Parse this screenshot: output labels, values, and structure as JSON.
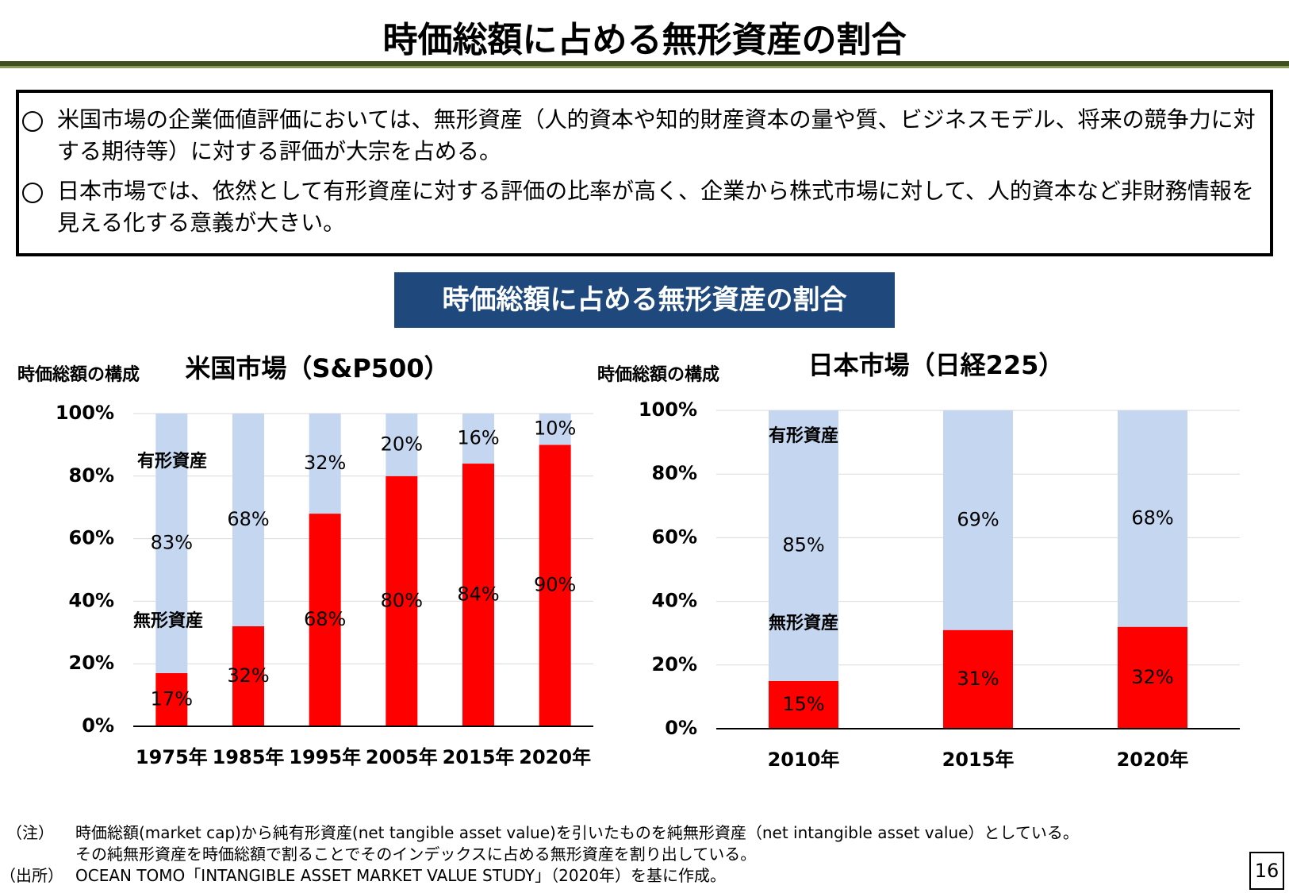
{
  "header": {
    "title": "時価総額に占める無形資産の割合"
  },
  "summary": {
    "bullets": [
      "米国市場の企業価値評価においては、無形資産（人的資本や知的財産資本の量や質、ビジネスモデル、将来の競争力に対する期待等）に対する評価が大宗を占める。",
      "日本市場では、依然として有形資産に対する評価の比率が高く、企業から株式市場に対して、人的資本など非財務情報を見える化する意義が大きい。"
    ]
  },
  "banner": {
    "title": "時価総額に占める無形資産の割合"
  },
  "chart_data": [
    {
      "type": "stacked_bar",
      "title": "米国市場（S&P500）",
      "y_label": "時価総額の構成",
      "categories": [
        "1975年",
        "1985年",
        "1995年",
        "2005年",
        "2015年",
        "2020年"
      ],
      "series": [
        {
          "name": "無形資産",
          "color": "#ff0000",
          "values": [
            17,
            32,
            68,
            80,
            84,
            90
          ],
          "value_labels": [
            "17%",
            "32%",
            "68%",
            "80%",
            "84%",
            "90%"
          ]
        },
        {
          "name": "有形資産",
          "color": "#c5d7f0",
          "values": [
            83,
            68,
            32,
            20,
            16,
            10
          ],
          "value_labels": [
            "83%",
            "68%",
            "32%",
            "20%",
            "16%",
            "10%"
          ]
        }
      ],
      "ylim": [
        0,
        100
      ],
      "yticks": [
        {
          "value": 0,
          "label": "0%"
        },
        {
          "value": 20,
          "label": "20%"
        },
        {
          "value": 40,
          "label": "40%"
        },
        {
          "value": 60,
          "label": "60%"
        },
        {
          "value": 80,
          "label": "80%"
        },
        {
          "value": 100,
          "label": "100%"
        }
      ],
      "grid": true
    },
    {
      "type": "stacked_bar",
      "title": "日本市場（日経225）",
      "y_label": "時価総額の構成",
      "categories": [
        "2010年",
        "2015年",
        "2020年"
      ],
      "series": [
        {
          "name": "無形資産",
          "color": "#ff0000",
          "values": [
            15,
            31,
            32
          ],
          "value_labels": [
            "15%",
            "31%",
            "32%"
          ]
        },
        {
          "name": "有形資産",
          "color": "#c5d7f0",
          "values": [
            85,
            69,
            68
          ],
          "value_labels": [
            "85%",
            "69%",
            "68%"
          ]
        }
      ],
      "ylim": [
        0,
        100
      ],
      "yticks": [
        {
          "value": 0,
          "label": "0%"
        },
        {
          "value": 20,
          "label": "20%"
        },
        {
          "value": 40,
          "label": "40%"
        },
        {
          "value": 60,
          "label": "60%"
        },
        {
          "value": 80,
          "label": "80%"
        },
        {
          "value": 100,
          "label": "100%"
        }
      ],
      "grid": true
    }
  ],
  "notes": [
    {
      "label": "（注）",
      "lines": [
        "時価総額(market cap)から純有形資産(net tangible asset value)を引いたものを純無形資産（net intangible asset value）としている。",
        "その純無形資産を時価総額で割ることでそのインデックスに占める無形資産を割り出している。"
      ]
    },
    {
      "label": "（出所）",
      "lines": [
        "OCEAN TOMO「INTANGIBLE ASSET MARKET VALUE STUDY」（2020年）を基に作成。"
      ]
    }
  ],
  "page_number": "16"
}
